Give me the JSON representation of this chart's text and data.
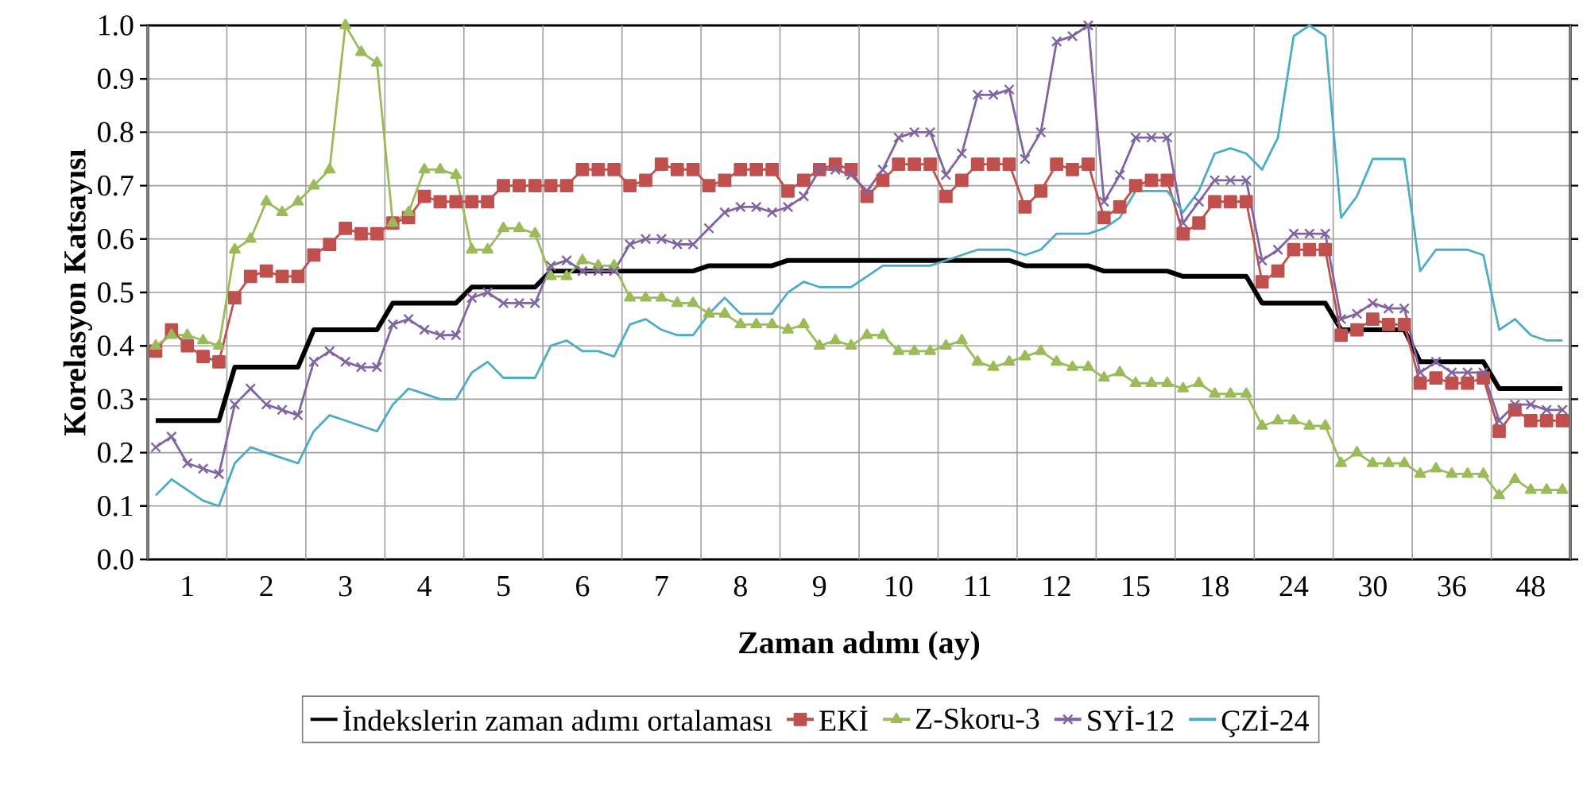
{
  "chart_data": {
    "type": "line",
    "xlabel": "Zaman adımı (ay)",
    "ylabel": "Korelasyon Katsayısı",
    "categories": [
      null,
      null,
      "1",
      null,
      null,
      null,
      null,
      "2",
      null,
      null,
      null,
      null,
      "3",
      null,
      null,
      null,
      null,
      "4",
      null,
      null,
      null,
      null,
      "5",
      null,
      null,
      null,
      null,
      "6",
      null,
      null,
      null,
      null,
      "7",
      null,
      null,
      null,
      null,
      "8",
      null,
      null,
      null,
      null,
      "9",
      null,
      null,
      null,
      null,
      "10",
      null,
      null,
      null,
      null,
      "11",
      null,
      null,
      null,
      null,
      "12",
      null,
      null,
      null,
      null,
      "15",
      null,
      null,
      null,
      null,
      "18",
      null,
      null,
      null,
      null,
      "24",
      null,
      null,
      null,
      null,
      "30",
      null,
      null,
      null,
      null,
      "36",
      null,
      null,
      null,
      null,
      "48",
      null,
      null
    ],
    "ylim": [
      0,
      1
    ],
    "yticks": [
      {
        "value": 0,
        "label": "0.0"
      },
      0.1,
      0.2,
      0.3,
      0.4,
      0.5,
      0.6,
      0.7,
      0.8,
      0.9,
      {
        "value": 1,
        "label": "1.0"
      }
    ],
    "grid": true,
    "legend": "bottom",
    "series": [
      {
        "name": "İndekslerin zaman adımı ortalaması",
        "color": "#000000",
        "values": [
          0.26,
          0.26,
          0.26,
          0.26,
          0.26,
          0.36,
          0.36,
          0.36,
          0.36,
          0.36,
          0.43,
          0.43,
          0.43,
          0.43,
          0.43,
          0.48,
          0.48,
          0.48,
          0.48,
          0.48,
          0.51,
          0.51,
          0.51,
          0.51,
          0.51,
          0.54,
          0.54,
          0.54,
          0.54,
          0.54,
          0.54,
          0.54,
          0.54,
          0.54,
          0.54,
          0.55,
          0.55,
          0.55,
          0.55,
          0.55,
          0.56,
          0.56,
          0.56,
          0.56,
          0.56,
          0.56,
          0.56,
          0.56,
          0.56,
          0.56,
          0.56,
          0.56,
          0.56,
          0.56,
          0.56,
          0.55,
          0.55,
          0.55,
          0.55,
          0.55,
          0.54,
          0.54,
          0.54,
          0.54,
          0.54,
          0.53,
          0.53,
          0.53,
          0.53,
          0.53,
          0.48,
          0.48,
          0.48,
          0.48,
          0.48,
          0.43,
          0.43,
          0.43,
          0.43,
          0.43,
          0.37,
          0.37,
          0.37,
          0.37,
          0.37,
          0.32,
          0.32,
          0.32,
          0.32,
          0.32
        ]
      },
      {
        "name": "EKİ",
        "color": "#c0504d",
        "marker": "square",
        "values": [
          0.39,
          0.43,
          0.4,
          0.38,
          0.37,
          0.49,
          0.53,
          0.54,
          0.53,
          0.53,
          0.57,
          0.59,
          0.62,
          0.61,
          0.61,
          0.63,
          0.64,
          0.68,
          0.67,
          0.67,
          0.67,
          0.67,
          0.7,
          0.7,
          0.7,
          0.7,
          0.7,
          0.73,
          0.73,
          0.73,
          0.7,
          0.71,
          0.74,
          0.73,
          0.73,
          0.7,
          0.71,
          0.73,
          0.73,
          0.73,
          0.69,
          0.71,
          0.73,
          0.74,
          0.73,
          0.68,
          0.71,
          0.74,
          0.74,
          0.74,
          0.68,
          0.71,
          0.74,
          0.74,
          0.74,
          0.66,
          0.69,
          0.74,
          0.73,
          0.74,
          0.64,
          0.66,
          0.7,
          0.71,
          0.71,
          0.61,
          0.63,
          0.67,
          0.67,
          0.67,
          0.52,
          0.54,
          0.58,
          0.58,
          0.58,
          0.42,
          0.43,
          0.45,
          0.44,
          0.44,
          0.33,
          0.34,
          0.33,
          0.33,
          0.34,
          0.24,
          0.28,
          0.26,
          0.26,
          0.26
        ]
      },
      {
        "name": "Z-Skoru-3",
        "color": "#9bbb59",
        "marker": "triangle",
        "values": [
          0.4,
          0.42,
          0.42,
          0.41,
          0.4,
          0.58,
          0.6,
          0.67,
          0.65,
          0.67,
          0.7,
          0.73,
          1.0,
          0.95,
          0.93,
          0.63,
          0.65,
          0.73,
          0.73,
          0.72,
          0.58,
          0.58,
          0.62,
          0.62,
          0.61,
          0.53,
          0.53,
          0.56,
          0.55,
          0.55,
          0.49,
          0.49,
          0.49,
          0.48,
          0.48,
          0.46,
          0.46,
          0.44,
          0.44,
          0.44,
          0.43,
          0.44,
          0.4,
          0.41,
          0.4,
          0.42,
          0.42,
          0.39,
          0.39,
          0.39,
          0.4,
          0.41,
          0.37,
          0.36,
          0.37,
          0.38,
          0.39,
          0.37,
          0.36,
          0.36,
          0.34,
          0.35,
          0.33,
          0.33,
          0.33,
          0.32,
          0.33,
          0.31,
          0.31,
          0.31,
          0.25,
          0.26,
          0.26,
          0.25,
          0.25,
          0.18,
          0.2,
          0.18,
          0.18,
          0.18,
          0.16,
          0.17,
          0.16,
          0.16,
          0.16,
          0.12,
          0.15,
          0.13,
          0.13,
          0.13
        ]
      },
      {
        "name": "SYİ-12",
        "color": "#8064a2",
        "marker": "cross",
        "values": [
          0.21,
          0.23,
          0.18,
          0.17,
          0.16,
          0.29,
          0.32,
          0.29,
          0.28,
          0.27,
          0.37,
          0.39,
          0.37,
          0.36,
          0.36,
          0.44,
          0.45,
          0.43,
          0.42,
          0.42,
          0.49,
          0.5,
          0.48,
          0.48,
          0.48,
          0.55,
          0.56,
          0.54,
          0.54,
          0.54,
          0.59,
          0.6,
          0.6,
          0.59,
          0.59,
          0.62,
          0.65,
          0.66,
          0.66,
          0.65,
          0.66,
          0.68,
          0.73,
          0.73,
          0.72,
          0.69,
          0.73,
          0.79,
          0.8,
          0.8,
          0.72,
          0.76,
          0.87,
          0.87,
          0.88,
          0.75,
          0.8,
          0.97,
          0.98,
          1.0,
          0.67,
          0.72,
          0.79,
          0.79,
          0.79,
          0.63,
          0.67,
          0.71,
          0.71,
          0.71,
          0.56,
          0.58,
          0.61,
          0.61,
          0.61,
          0.45,
          0.46,
          0.48,
          0.47,
          0.47,
          0.35,
          0.37,
          0.35,
          0.35,
          0.35,
          0.26,
          0.29,
          0.29,
          0.28,
          0.28
        ]
      },
      {
        "name": "ÇZİ-24",
        "color": "#4bacc6",
        "values": [
          0.12,
          0.15,
          0.13,
          0.11,
          0.1,
          0.18,
          0.21,
          0.2,
          0.19,
          0.18,
          0.24,
          0.27,
          0.26,
          0.25,
          0.24,
          0.29,
          0.32,
          0.31,
          0.3,
          0.3,
          0.35,
          0.37,
          0.34,
          0.34,
          0.34,
          0.4,
          0.41,
          0.39,
          0.39,
          0.38,
          0.44,
          0.45,
          0.43,
          0.42,
          0.42,
          0.46,
          0.49,
          0.46,
          0.46,
          0.46,
          0.5,
          0.52,
          0.51,
          0.51,
          0.51,
          0.53,
          0.55,
          0.55,
          0.55,
          0.55,
          0.56,
          0.57,
          0.58,
          0.58,
          0.58,
          0.57,
          0.58,
          0.61,
          0.61,
          0.61,
          0.62,
          0.64,
          0.69,
          0.69,
          0.69,
          0.65,
          0.69,
          0.76,
          0.77,
          0.76,
          0.73,
          0.79,
          0.98,
          1.0,
          0.98,
          0.64,
          0.68,
          0.75,
          0.75,
          0.75,
          0.54,
          0.58,
          0.58,
          0.58,
          0.57,
          0.43,
          0.45,
          0.42,
          0.41,
          0.41
        ]
      }
    ]
  }
}
